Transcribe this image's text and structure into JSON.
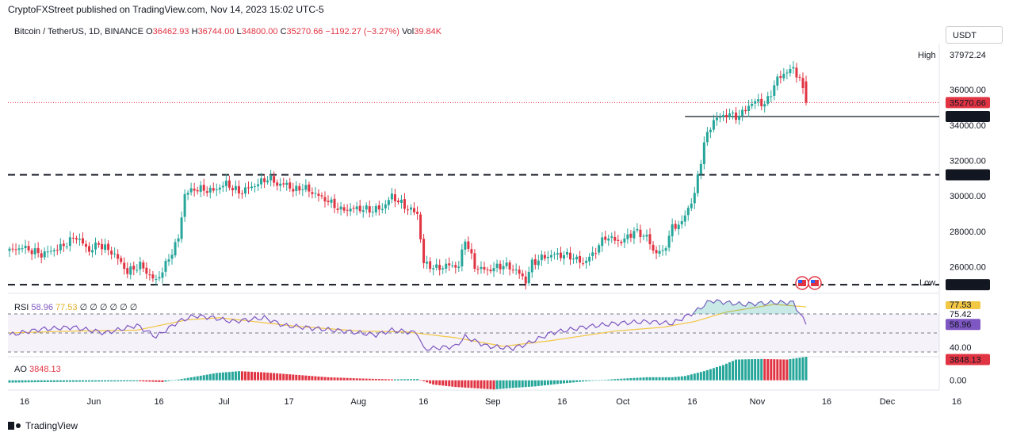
{
  "header": {
    "published": "CryptoFXStreet published on TradingView.com, Nov 14, 2023 15:02 UTC-5"
  },
  "ohlc": {
    "symbol": "Bitcoin / TetherUS, 1D, BINANCE",
    "o_label": "O",
    "o": "36462.93",
    "h_label": "H",
    "h": "36744.00",
    "l_label": "L",
    "l": "34800.00",
    "c_label": "C",
    "c": "35270.66",
    "change": "−1192.27 (−3.27%)",
    "vol_label": "Vol",
    "vol": "39.84K"
  },
  "currency_button": "USDT",
  "high_label": "High",
  "low_label": "Low",
  "rsi": {
    "name": "RSI",
    "value": "58.96",
    "ma": "77.53",
    "extra": "∅ ∅ ∅ ∅ ∅ ∅"
  },
  "ao": {
    "name": "AO",
    "value": "3848.13"
  },
  "brand": "TradingView",
  "colors": {
    "up": "#26a69a",
    "down": "#e13443",
    "rsi": "#7e57c2",
    "rsi_ma": "#f2c744"
  },
  "chart_data": [
    {
      "type": "candlestick",
      "title": "Bitcoin / TetherUS, 1D, BINANCE",
      "ylim": [
        24500,
        38600
      ],
      "x_ticks": [
        "16",
        "Jun",
        "16",
        "Jul",
        "17",
        "Aug",
        "16",
        "Sep",
        "16",
        "Oct",
        "16",
        "Nov",
        "16",
        "Dec",
        "16"
      ],
      "y_ticks": [
        "36000.00",
        "34000.00",
        "32000.00",
        "30000.00",
        "28000.00",
        "26000.00"
      ],
      "price_labels": [
        {
          "name": "high",
          "value": "37972.24"
        },
        {
          "name": "last",
          "value": "35270.66"
        },
        {
          "name": "level",
          "value": "34483.00"
        },
        {
          "name": "level",
          "value": "31190.45"
        },
        {
          "name": "level",
          "value": "24985.07"
        },
        {
          "name": "low",
          "value": "24800.00"
        }
      ],
      "levels_dashed": [
        31190.45,
        24985.07
      ],
      "level_solid": 34483,
      "last_price": 35270.66,
      "anchors": [
        [
          0,
          26900
        ],
        [
          4,
          27100
        ],
        [
          10,
          26700
        ],
        [
          16,
          27100
        ],
        [
          21,
          27700
        ],
        [
          25,
          26900
        ],
        [
          28,
          27300
        ],
        [
          33,
          26700
        ],
        [
          37,
          25700
        ],
        [
          41,
          26100
        ],
        [
          44,
          25500
        ],
        [
          46,
          25200
        ],
        [
          49,
          26100
        ],
        [
          53,
          27600
        ],
        [
          55,
          30100
        ],
        [
          58,
          30400
        ],
        [
          64,
          30300
        ],
        [
          68,
          30700
        ],
        [
          72,
          30200
        ],
        [
          77,
          30600
        ],
        [
          81,
          31000
        ],
        [
          85,
          30600
        ],
        [
          87,
          30700
        ],
        [
          89,
          30300
        ],
        [
          92,
          30500
        ],
        [
          96,
          30100
        ],
        [
          100,
          29700
        ],
        [
          104,
          29200
        ],
        [
          109,
          29300
        ],
        [
          113,
          29200
        ],
        [
          117,
          29300
        ],
        [
          120,
          30000
        ],
        [
          124,
          29400
        ],
        [
          128,
          29000
        ],
        [
          130,
          26200
        ],
        [
          134,
          25900
        ],
        [
          138,
          26100
        ],
        [
          141,
          26000
        ],
        [
          143,
          27600
        ],
        [
          146,
          26000
        ],
        [
          150,
          25800
        ],
        [
          155,
          26100
        ],
        [
          159,
          25800
        ],
        [
          162,
          25200
        ],
        [
          164,
          26200
        ],
        [
          167,
          26500
        ],
        [
          171,
          26700
        ],
        [
          176,
          26600
        ],
        [
          180,
          26200
        ],
        [
          183,
          26700
        ],
        [
          187,
          27700
        ],
        [
          192,
          27400
        ],
        [
          196,
          28000
        ],
        [
          200,
          27700
        ],
        [
          202,
          26900
        ],
        [
          205,
          26800
        ],
        [
          208,
          28200
        ],
        [
          211,
          28500
        ],
        [
          215,
          30100
        ],
        [
          218,
          33000
        ],
        [
          221,
          34300
        ],
        [
          225,
          34600
        ],
        [
          229,
          34500
        ],
        [
          232,
          35100
        ],
        [
          235,
          35400
        ],
        [
          237,
          35100
        ],
        [
          241,
          36600
        ],
        [
          243,
          36900
        ],
        [
          246,
          37200
        ],
        [
          248,
          36600
        ],
        [
          250,
          35270.66
        ]
      ]
    },
    {
      "type": "line",
      "title": "RSI",
      "ylim": [
        25,
        90
      ],
      "y_ticks": [
        "77.53",
        "75.42",
        "58.96",
        "40.00"
      ],
      "band_lines": [
        70,
        50,
        30
      ],
      "anchors_rsi": [
        [
          0,
          48
        ],
        [
          10,
          54
        ],
        [
          20,
          56
        ],
        [
          30,
          50
        ],
        [
          40,
          58
        ],
        [
          46,
          46
        ],
        [
          53,
          62
        ],
        [
          58,
          68
        ],
        [
          64,
          66
        ],
        [
          70,
          62
        ],
        [
          80,
          66
        ],
        [
          86,
          58
        ],
        [
          95,
          55
        ],
        [
          105,
          52
        ],
        [
          115,
          48
        ],
        [
          120,
          53
        ],
        [
          128,
          50
        ],
        [
          130,
          33
        ],
        [
          140,
          36
        ],
        [
          143,
          46
        ],
        [
          150,
          36
        ],
        [
          158,
          34
        ],
        [
          162,
          38
        ],
        [
          170,
          50
        ],
        [
          180,
          56
        ],
        [
          190,
          60
        ],
        [
          200,
          62
        ],
        [
          208,
          60
        ],
        [
          215,
          72
        ],
        [
          220,
          84
        ],
        [
          230,
          80
        ],
        [
          240,
          82
        ],
        [
          246,
          82
        ],
        [
          250,
          58.96
        ]
      ],
      "anchors_ma": [
        [
          0,
          50
        ],
        [
          20,
          52
        ],
        [
          40,
          53
        ],
        [
          56,
          64
        ],
        [
          66,
          66
        ],
        [
          90,
          57
        ],
        [
          110,
          52
        ],
        [
          125,
          51
        ],
        [
          140,
          45
        ],
        [
          155,
          36
        ],
        [
          170,
          42
        ],
        [
          190,
          52
        ],
        [
          205,
          56
        ],
        [
          215,
          62
        ],
        [
          225,
          72
        ],
        [
          240,
          80
        ],
        [
          250,
          77.53
        ]
      ]
    },
    {
      "type": "bar",
      "title": "AO",
      "ylim": [
        -1600,
        3600
      ],
      "y_ticks": [
        "3848.13",
        "0.00"
      ],
      "anchors": [
        [
          0,
          -380
        ],
        [
          10,
          -300
        ],
        [
          20,
          -250
        ],
        [
          30,
          -200
        ],
        [
          40,
          -150
        ],
        [
          48,
          -300
        ],
        [
          55,
          300
        ],
        [
          65,
          1200
        ],
        [
          72,
          1500
        ],
        [
          80,
          1300
        ],
        [
          90,
          900
        ],
        [
          100,
          500
        ],
        [
          110,
          300
        ],
        [
          120,
          150
        ],
        [
          128,
          200
        ],
        [
          133,
          -700
        ],
        [
          140,
          -1100
        ],
        [
          146,
          -1300
        ],
        [
          152,
          -1500
        ],
        [
          158,
          -1250
        ],
        [
          165,
          -1000
        ],
        [
          172,
          -600
        ],
        [
          180,
          -200
        ],
        [
          190,
          200
        ],
        [
          200,
          500
        ],
        [
          208,
          500
        ],
        [
          212,
          700
        ],
        [
          218,
          1500
        ],
        [
          224,
          2500
        ],
        [
          228,
          3400
        ],
        [
          236,
          3500
        ],
        [
          244,
          3400
        ],
        [
          250,
          3848.13
        ]
      ]
    }
  ]
}
